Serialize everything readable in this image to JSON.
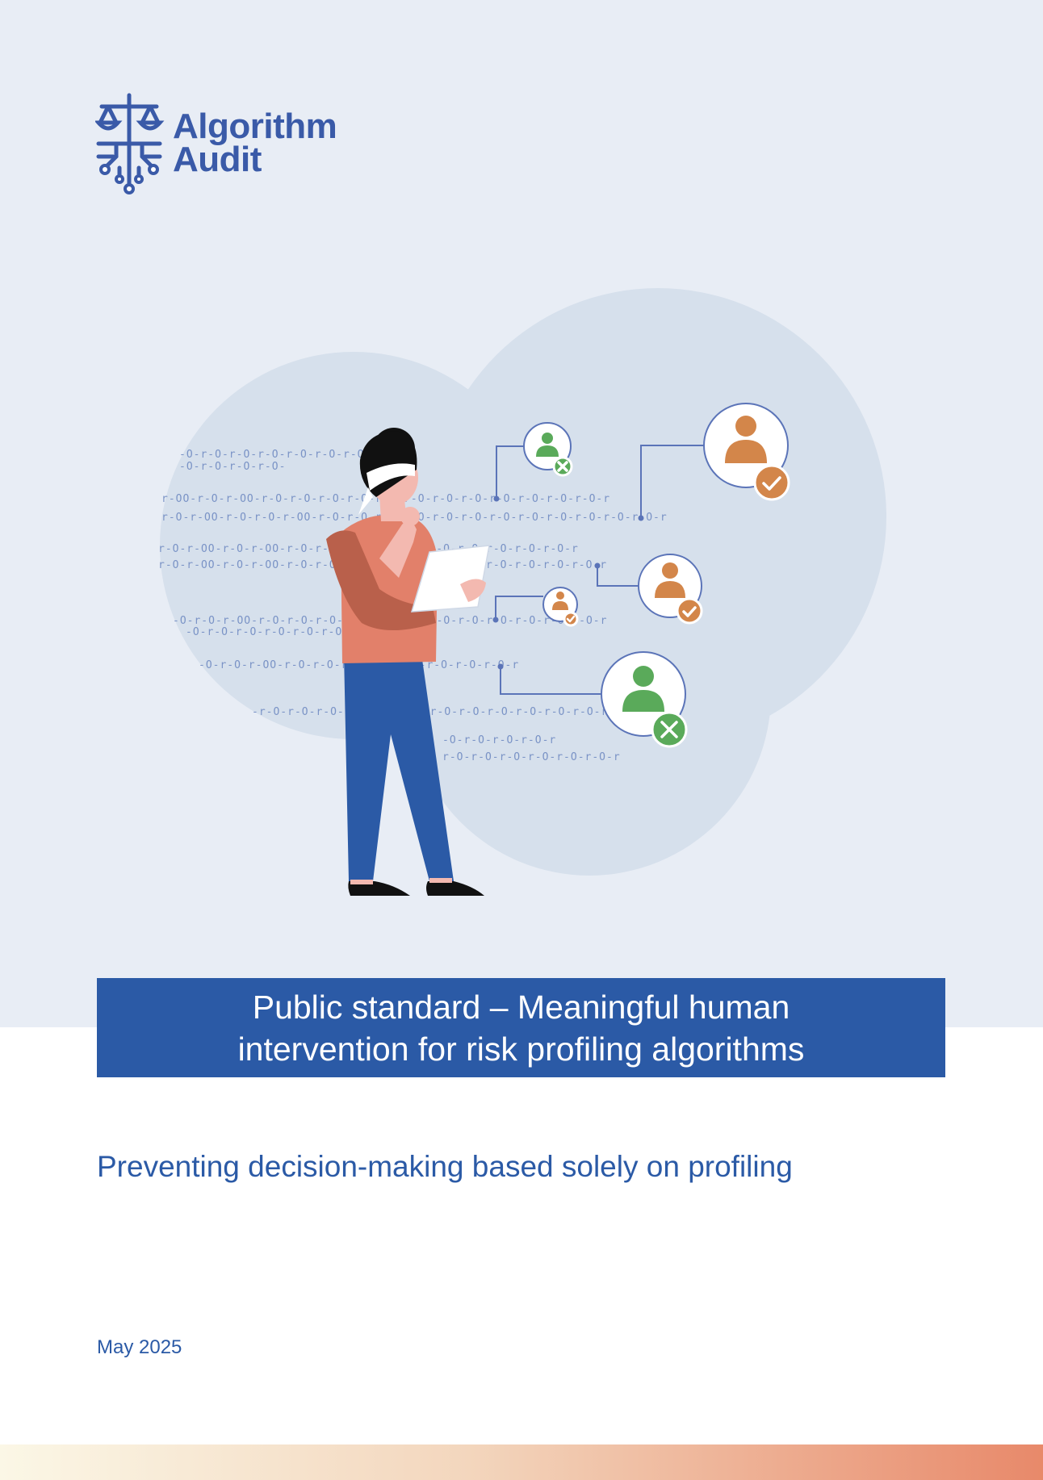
{
  "logo": {
    "icon": "scales-circuit-icon",
    "line1": "Algorithm",
    "line2": "Audit"
  },
  "illustration": {
    "description_icon": "blindfolded-person-reviewing-profiles-icon"
  },
  "title": {
    "line1": "Public standard – Meaningful human",
    "line2": "intervention for risk profiling algorithms"
  },
  "subtitle": "Preventing decision-making based solely on profiling",
  "date": "May 2025",
  "colors": {
    "brand_blue": "#2b5aa6",
    "logo_blue": "#3a5aa8",
    "background_band": "#e8edf5",
    "cloud": "#d6e0ec",
    "orange": "#d3864a",
    "green": "#5aaa5a"
  }
}
